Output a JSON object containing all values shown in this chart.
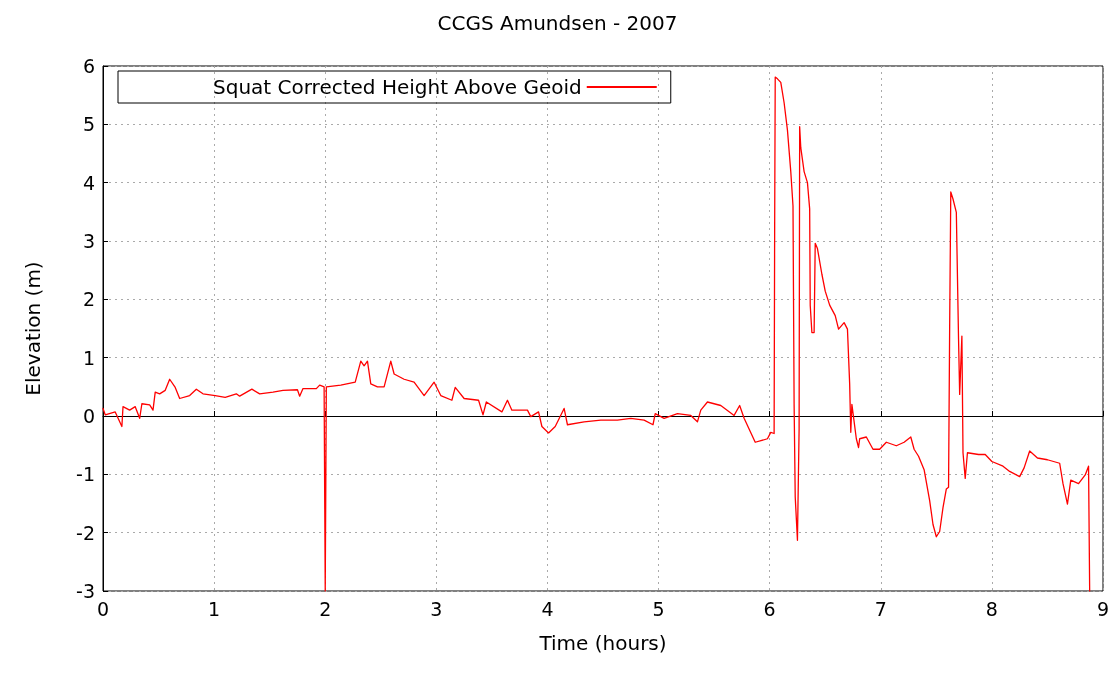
{
  "chart_data": {
    "type": "line",
    "title": "CCGS Amundsen - 2007",
    "xlabel": "Time (hours)",
    "ylabel": "Elevation (m)",
    "x": [
      0,
      0.02,
      0.11,
      0.17,
      0.18,
      0.24,
      0.29,
      0.33,
      0.35,
      0.42,
      0.45,
      0.47,
      0.51,
      0.56,
      0.6,
      0.65,
      0.69,
      0.78,
      0.84,
      0.9,
      1.01,
      1.1,
      1.2,
      1.23,
      1.34,
      1.41,
      1.53,
      1.62,
      1.75,
      1.77,
      1.8,
      1.92,
      1.95,
      1.99,
      2.0,
      2.01,
      2.14,
      2.27,
      2.32,
      2.35,
      2.38,
      2.41,
      2.47,
      2.53,
      2.59,
      2.62,
      2.71,
      2.8,
      2.89,
      2.98,
      3.04,
      3.14,
      3.17,
      3.25,
      3.38,
      3.42,
      3.45,
      3.59,
      3.64,
      3.68,
      3.82,
      3.85,
      3.92,
      3.95,
      4.01,
      4.07,
      4.15,
      4.18,
      4.33,
      4.48,
      4.63,
      4.75,
      4.87,
      4.95,
      4.97,
      5.05,
      5.17,
      5.29,
      5.35,
      5.38,
      5.44,
      5.56,
      5.68,
      5.73,
      5.77,
      5.87,
      5.98,
      6.01,
      6.04,
      6.045,
      6.05,
      6.07,
      6.1,
      6.13,
      6.16,
      6.19,
      6.21,
      6.22,
      6.23,
      6.25,
      6.265,
      6.27,
      6.28,
      6.31,
      6.34,
      6.36,
      6.365,
      6.38,
      6.4,
      6.41,
      6.43,
      6.47,
      6.5,
      6.54,
      6.59,
      6.62,
      6.67,
      6.7,
      6.72,
      6.73,
      6.74,
      6.78,
      6.8,
      6.81,
      6.87,
      6.93,
      6.99,
      7.05,
      7.14,
      7.21,
      7.27,
      7.3,
      7.34,
      7.39,
      7.44,
      7.47,
      7.5,
      7.53,
      7.56,
      7.59,
      7.61,
      7.62,
      7.63,
      7.65,
      7.68,
      7.7,
      7.71,
      7.73,
      7.74,
      7.76,
      7.78,
      7.88,
      7.94,
      8.0,
      8.1,
      8.16,
      8.25,
      8.29,
      8.34,
      8.41,
      8.5,
      8.61,
      8.64,
      8.68,
      8.71,
      8.78,
      8.84,
      8.87,
      8.88
    ],
    "series": [
      {
        "name": "Squat Corrected Height Above Geoid",
        "color": "#ff0000",
        "values": [
          0.13,
          0.02,
          0.07,
          -0.18,
          0.16,
          0.1,
          0.16,
          -0.04,
          0.21,
          0.19,
          0.1,
          0.41,
          0.38,
          0.44,
          0.63,
          0.49,
          0.3,
          0.35,
          0.46,
          0.38,
          0.35,
          0.32,
          0.38,
          0.34,
          0.46,
          0.38,
          0.41,
          0.44,
          0.45,
          0.34,
          0.47,
          0.47,
          0.53,
          0.5,
          -3,
          0.5,
          0.53,
          0.58,
          0.94,
          0.86,
          0.94,
          0.55,
          0.5,
          0.5,
          0.94,
          0.72,
          0.63,
          0.58,
          0.35,
          0.58,
          0.35,
          0.27,
          0.49,
          0.3,
          0.27,
          0.02,
          0.24,
          0.07,
          0.27,
          0.1,
          0.1,
          -0.01,
          0.07,
          -0.18,
          -0.29,
          -0.18,
          0.13,
          -0.15,
          -0.1,
          -0.07,
          -0.07,
          -0.04,
          -0.07,
          -0.15,
          0.04,
          -0.04,
          0.04,
          0.01,
          -0.1,
          0.1,
          0.24,
          0.18,
          0.01,
          0.18,
          -0.04,
          -0.45,
          -0.39,
          -0.28,
          -0.3,
          3.25,
          5.81,
          5.78,
          5.72,
          5.37,
          4.9,
          4.19,
          3.6,
          0.2,
          -1.39,
          -2.13,
          -0.22,
          4.96,
          4.6,
          4.19,
          4.0,
          3.55,
          1.9,
          1.43,
          1.43,
          2.96,
          2.87,
          2.43,
          2.14,
          1.9,
          1.72,
          1.49,
          1.6,
          1.49,
          0.55,
          -0.28,
          0.2,
          -0.39,
          -0.54,
          -0.39,
          -0.36,
          -0.57,
          -0.57,
          -0.45,
          -0.51,
          -0.45,
          -0.36,
          -0.57,
          -0.69,
          -0.92,
          -1.45,
          -1.86,
          -2.07,
          -1.98,
          -1.57,
          -1.25,
          -1.22,
          1.55,
          3.84,
          3.72,
          3.49,
          1.31,
          0.37,
          1.37,
          -0.63,
          -1.07,
          -0.63,
          -0.66,
          -0.66,
          -0.78,
          -0.86,
          -0.95,
          -1.04,
          -0.89,
          -0.6,
          -0.72,
          -0.75,
          -0.81,
          -1.16,
          -1.51,
          -1.1,
          -1.16,
          -1.01,
          -0.86,
          -3
        ]
      }
    ],
    "xlim": [
      0,
      9
    ],
    "xticks": [
      0,
      1,
      2,
      3,
      4,
      5,
      6,
      7,
      8,
      9
    ],
    "ylim": [
      -3,
      6
    ],
    "yticks": [
      -3,
      -2,
      -1,
      0,
      1,
      2,
      3,
      4,
      5,
      6
    ],
    "grid": true,
    "legend": "top left",
    "marker": "none",
    "line_style": "solid"
  }
}
